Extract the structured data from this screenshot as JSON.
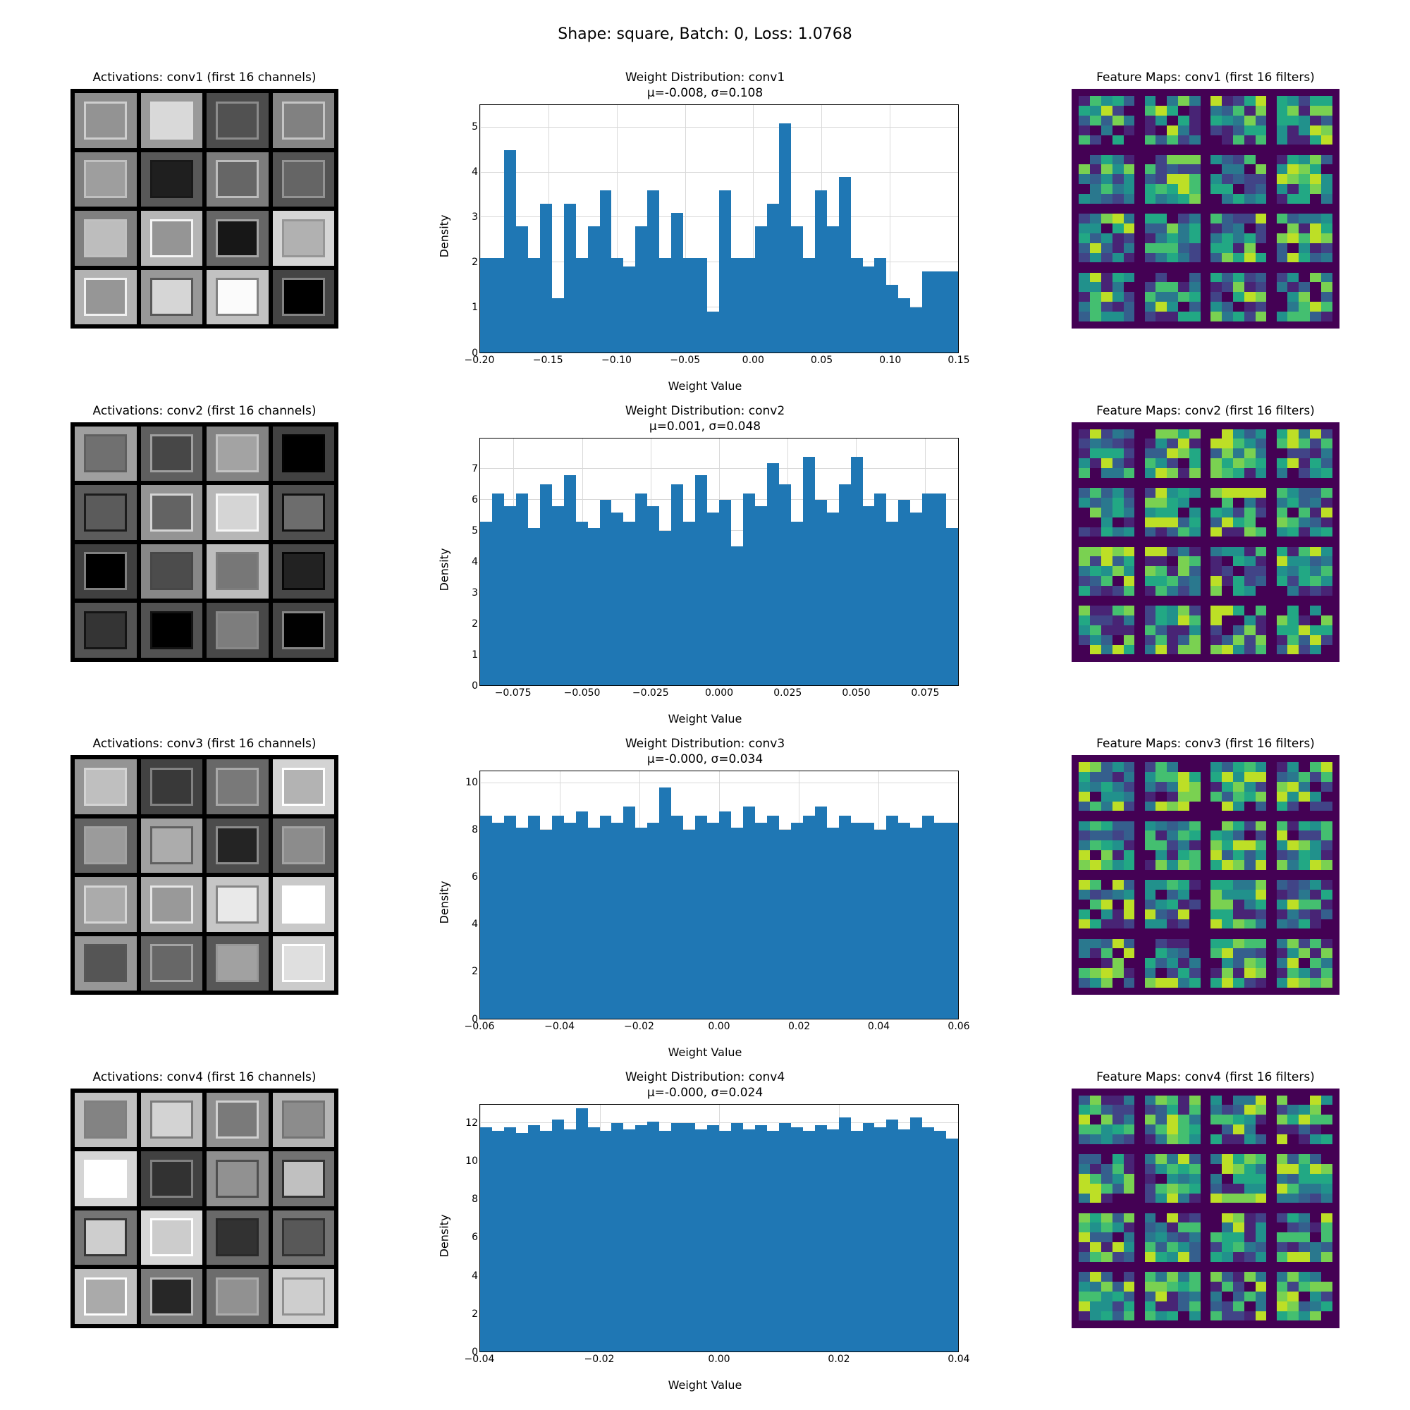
{
  "suptitle": "Shape: square, Batch: 0, Loss: 1.0768",
  "colors": {
    "bar": "#1f77b4",
    "grid": "#d9d9d9",
    "border": "#000000",
    "fmap_bg": "#440154",
    "viridis": [
      "#440154",
      "#482475",
      "#414487",
      "#355f8d",
      "#2a788e",
      "#21918c",
      "#22a884",
      "#44bf70",
      "#7ad151",
      "#bddf26",
      "#fde725"
    ]
  },
  "axis_labels": {
    "x": "Weight Value",
    "y": "Density"
  },
  "rows": [
    {
      "layer": "conv1",
      "act_title": "Activations: conv1 (first 16 channels)",
      "fmap_title": "Feature Maps: conv1 (first 16 filters)",
      "hist_title": "Weight Distribution: conv1",
      "hist_subtitle": "μ=-0.008, σ=0.108",
      "activations_seed": 11,
      "fmap_seed": 101,
      "hist": {
        "ymax": 5.5,
        "yticks": [
          0,
          1,
          2,
          3,
          4,
          5
        ],
        "xticks": [
          "−0.20",
          "−0.15",
          "−0.10",
          "−0.05",
          "0.00",
          "0.05",
          "0.10",
          "0.15"
        ],
        "xtick_pos": [
          0.0,
          0.143,
          0.286,
          0.429,
          0.571,
          0.714,
          0.857,
          1.0
        ],
        "values": [
          2.1,
          2.1,
          4.5,
          2.8,
          2.1,
          3.3,
          1.2,
          3.3,
          2.1,
          2.8,
          3.6,
          2.1,
          1.9,
          2.8,
          3.6,
          2.1,
          3.1,
          2.1,
          2.1,
          0.9,
          3.6,
          2.1,
          2.1,
          2.8,
          3.3,
          5.1,
          2.8,
          2.1,
          3.6,
          2.8,
          3.9,
          2.1,
          1.9,
          2.1,
          1.5,
          1.2,
          1.0,
          1.8,
          1.8,
          1.8
        ]
      }
    },
    {
      "layer": "conv2",
      "act_title": "Activations: conv2 (first 16 channels)",
      "fmap_title": "Feature Maps: conv2 (first 16 filters)",
      "hist_title": "Weight Distribution: conv2",
      "hist_subtitle": "μ=0.001, σ=0.048",
      "activations_seed": 22,
      "fmap_seed": 202,
      "hist": {
        "ymax": 8.0,
        "yticks": [
          0,
          1,
          2,
          3,
          4,
          5,
          6,
          7
        ],
        "xticks": [
          "−0.075",
          "−0.050",
          "−0.025",
          "0.000",
          "0.025",
          "0.050",
          "0.075"
        ],
        "xtick_pos": [
          0.07,
          0.214,
          0.357,
          0.5,
          0.643,
          0.786,
          0.93
        ],
        "values": [
          5.3,
          6.2,
          5.8,
          6.2,
          5.1,
          6.5,
          5.8,
          6.8,
          5.3,
          5.1,
          6.0,
          5.6,
          5.3,
          6.2,
          5.8,
          5.0,
          6.5,
          5.3,
          6.8,
          5.6,
          6.0,
          4.5,
          6.2,
          5.8,
          7.2,
          6.5,
          5.3,
          7.4,
          6.0,
          5.6,
          6.5,
          7.4,
          5.8,
          6.2,
          5.3,
          6.0,
          5.6,
          6.2,
          6.2,
          5.1
        ]
      }
    },
    {
      "layer": "conv3",
      "act_title": "Activations: conv3 (first 16 channels)",
      "fmap_title": "Feature Maps: conv3 (first 16 filters)",
      "hist_title": "Weight Distribution: conv3",
      "hist_subtitle": "μ=-0.000, σ=0.034",
      "activations_seed": 33,
      "fmap_seed": 303,
      "hist": {
        "ymax": 10.5,
        "yticks": [
          0,
          2,
          4,
          6,
          8,
          10
        ],
        "xticks": [
          "−0.06",
          "−0.04",
          "−0.02",
          "0.00",
          "0.02",
          "0.04",
          "0.06"
        ],
        "xtick_pos": [
          0.0,
          0.167,
          0.333,
          0.5,
          0.667,
          0.833,
          1.0
        ],
        "values": [
          8.6,
          8.3,
          8.6,
          8.1,
          8.6,
          8.0,
          8.6,
          8.3,
          8.8,
          8.1,
          8.6,
          8.3,
          9.0,
          8.1,
          8.3,
          9.8,
          8.6,
          8.0,
          8.6,
          8.3,
          8.8,
          8.1,
          9.0,
          8.3,
          8.6,
          8.0,
          8.3,
          8.6,
          9.0,
          8.1,
          8.6,
          8.3,
          8.3,
          8.0,
          8.6,
          8.3,
          8.1,
          8.6,
          8.3,
          8.3
        ]
      }
    },
    {
      "layer": "conv4",
      "act_title": "Activations: conv4 (first 16 channels)",
      "fmap_title": "Feature Maps: conv4 (first 16 filters)",
      "hist_title": "Weight Distribution: conv4",
      "hist_subtitle": "μ=-0.000, σ=0.024",
      "activations_seed": 44,
      "fmap_seed": 404,
      "hist": {
        "ymax": 13.0,
        "yticks": [
          0,
          2,
          4,
          6,
          8,
          10,
          12
        ],
        "xticks": [
          "−0.04",
          "−0.02",
          "0.00",
          "0.02",
          "0.04"
        ],
        "xtick_pos": [
          0.0,
          0.25,
          0.5,
          0.75,
          1.0
        ],
        "values": [
          11.8,
          11.6,
          11.8,
          11.5,
          11.9,
          11.6,
          12.2,
          11.7,
          12.8,
          11.8,
          11.6,
          12.0,
          11.7,
          11.9,
          12.1,
          11.6,
          12.0,
          12.0,
          11.7,
          11.9,
          11.6,
          12.0,
          11.7,
          11.9,
          11.6,
          12.0,
          11.8,
          11.6,
          11.9,
          11.7,
          12.3,
          11.6,
          12.0,
          11.8,
          12.2,
          11.7,
          12.3,
          11.8,
          11.6,
          11.2
        ]
      }
    }
  ]
}
